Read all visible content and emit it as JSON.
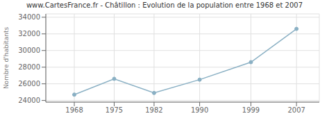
{
  "chart_data": {
    "type": "line",
    "title": "www.CartesFrance.fr - Châtillon : Evolution de la population entre 1968 et 2007",
    "ylabel": "Nombre d'habitants",
    "x": [
      1968,
      1975,
      1982,
      1990,
      1999,
      2007
    ],
    "values": [
      24700,
      26600,
      24900,
      26500,
      28600,
      32600
    ],
    "xlim": [
      1963,
      2011
    ],
    "ylim": [
      23800,
      34400
    ],
    "xticks": [
      1968,
      1975,
      1982,
      1990,
      1999,
      2007
    ],
    "yticks": [
      24000,
      26000,
      28000,
      30000,
      32000,
      34000
    ],
    "color": "#8ab0c4",
    "marker": "circle",
    "grid": true
  }
}
